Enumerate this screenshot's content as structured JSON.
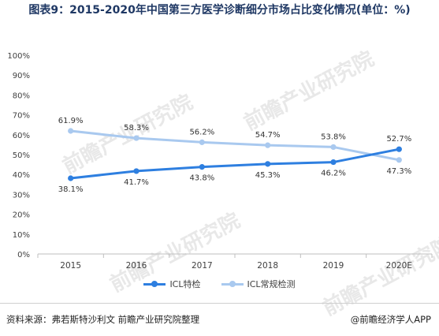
{
  "title": "图表9：2015-2020年中国第三方医学诊断细分市场占比变化情况(单位：%)",
  "watermark": "前瞻产业研究院",
  "chart_data": {
    "type": "line",
    "categories": [
      "2015",
      "2016",
      "2017",
      "2018",
      "2019",
      "2020E"
    ],
    "y_ticks": [
      "0%",
      "10%",
      "20%",
      "30%",
      "40%",
      "50%",
      "60%",
      "70%",
      "80%",
      "90%",
      "100%"
    ],
    "ylim": [
      0,
      100
    ],
    "grid": false,
    "legend_position": "bottom",
    "series": [
      {
        "name": "ICL特检",
        "color": "#2e7fe0",
        "values": [
          38.1,
          41.7,
          43.8,
          45.3,
          46.2,
          52.7
        ],
        "labels": [
          "38.1%",
          "41.7%",
          "43.8%",
          "45.3%",
          "46.2%",
          "52.7%"
        ]
      },
      {
        "name": "ICL常规检测",
        "color": "#a9c9ef",
        "values": [
          61.9,
          58.3,
          56.2,
          54.7,
          53.8,
          47.3
        ],
        "labels": [
          "61.9%",
          "58.3%",
          "56.2%",
          "54.7%",
          "53.8%",
          "47.3%"
        ]
      }
    ]
  },
  "footer": {
    "source": "资料来源：弗若斯特沙利文 前瞻产业研究院整理",
    "brand": "@前瞻经济学人APP"
  }
}
